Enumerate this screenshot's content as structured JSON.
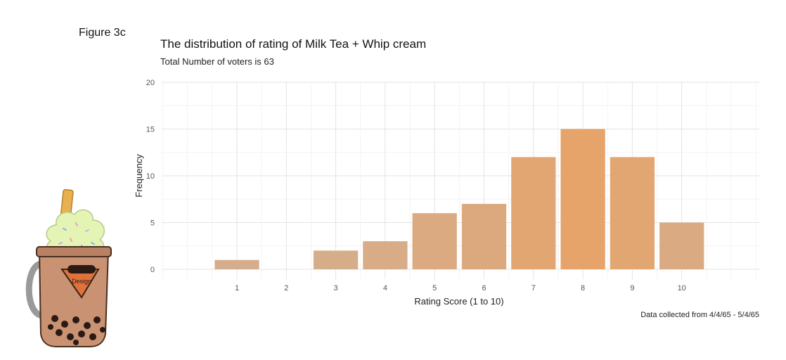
{
  "figure_label": "Figure 3c",
  "chart_data": {
    "type": "bar",
    "title": "The distribution of rating of Milk Tea + Whip cream",
    "subtitle": "Total Number of voters is 63",
    "caption": "Data collected from 4/4/65 - 5/4/65",
    "xlabel": "Rating Score (1 to 10)",
    "ylabel": "Frequency",
    "categories": [
      "1",
      "2",
      "3",
      "4",
      "5",
      "6",
      "7",
      "8",
      "9",
      "10"
    ],
    "values": [
      1,
      0,
      2,
      3,
      6,
      7,
      12,
      15,
      12,
      5
    ],
    "ylim": [
      0,
      20
    ],
    "yticks": [
      0,
      5,
      10,
      15,
      20
    ],
    "grid": true,
    "bar_color_low": "#d4ae8e",
    "bar_color_high": "#e6a46b"
  },
  "logo": {
    "icon": "milk-tea-cup-icon",
    "text": "Design",
    "colors": {
      "cup": "#c99272",
      "whip": "#e3f4b4",
      "straw": "#e9b04f",
      "pearl": "#2a1a14",
      "handle": "#9a9a9a"
    }
  }
}
